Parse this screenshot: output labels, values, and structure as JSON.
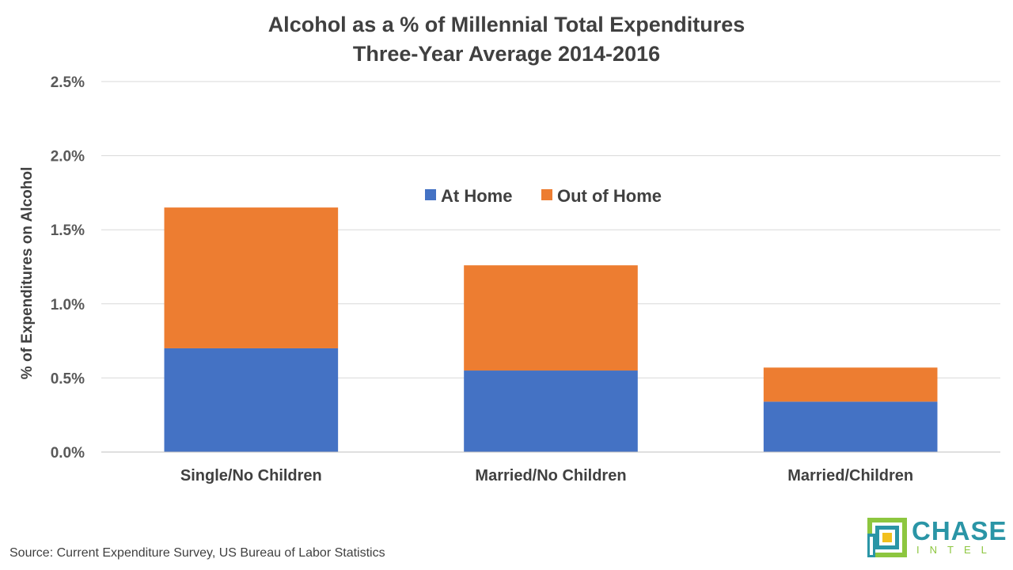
{
  "chart_data": {
    "type": "bar",
    "stacked": true,
    "title": "Alcohol as a % of Millennial Total Expenditures",
    "subtitle": "Three-Year Average 2014-2016",
    "ylabel": "% of Expenditures on Alcohol",
    "xlabel": "",
    "categories": [
      "Single/No Children",
      "Married/No Children",
      "Married/Children"
    ],
    "series": [
      {
        "name": "At Home",
        "color": "#4472c4",
        "values": [
          0.7,
          0.55,
          0.34
        ]
      },
      {
        "name": "Out of Home",
        "color": "#ed7d31",
        "values": [
          0.95,
          0.71,
          0.23
        ]
      }
    ],
    "ylim": [
      0,
      2.5
    ],
    "yticks": [
      {
        "value": 0.0,
        "label": "0.0%"
      },
      {
        "value": 0.5,
        "label": "0.5%"
      },
      {
        "value": 1.0,
        "label": "1.0%"
      },
      {
        "value": 1.5,
        "label": "1.5%"
      },
      {
        "value": 2.0,
        "label": "2.0%"
      },
      {
        "value": 2.5,
        "label": "2.5%"
      }
    ],
    "grid": true,
    "legend_position": "top-center"
  },
  "source": "Source: Current Expenditure Survey, US Bureau of Labor Statistics",
  "logo": {
    "word": "CHASE",
    "sub": "INTEL",
    "colors": {
      "teal": "#2a95a6",
      "green": "#8dc63f",
      "yellow": "#f2c01e"
    }
  }
}
